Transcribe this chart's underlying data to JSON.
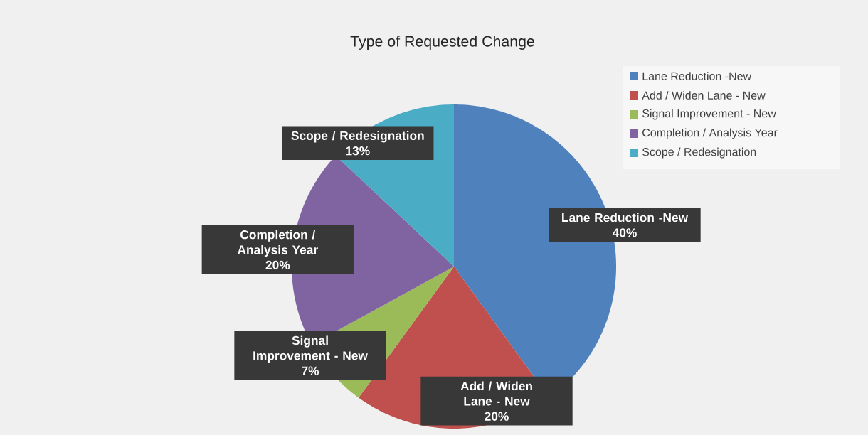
{
  "chart_data": {
    "type": "pie",
    "title": "Type of Requested Change",
    "categories": [
      "Lane Reduction -New",
      "Add / Widen Lane - New",
      "Signal Improvement - New",
      "Completion / Analysis Year",
      "Scope / Redesignation"
    ],
    "values": [
      40,
      20,
      7,
      20,
      13
    ],
    "value_labels": [
      "40%",
      "20%",
      "7%",
      "20%",
      "13%"
    ],
    "colors": [
      "#4f81bd",
      "#c0504d",
      "#9bbb59",
      "#8064a2",
      "#4bacc6"
    ],
    "legend": "top right"
  }
}
